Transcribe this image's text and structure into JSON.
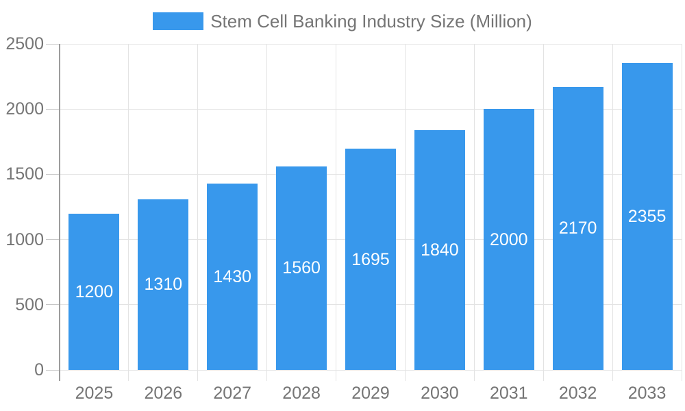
{
  "chart_data": {
    "type": "bar",
    "legend_label": "Stem Cell Banking Industry Size (Million)",
    "legend_position": "top-center",
    "categories": [
      "2025",
      "2026",
      "2027",
      "2028",
      "2029",
      "2030",
      "2031",
      "2032",
      "2033"
    ],
    "values": [
      1200,
      1310,
      1430,
      1560,
      1695,
      1840,
      2000,
      2170,
      2355
    ],
    "y_ticks": [
      0,
      500,
      1000,
      1500,
      2000,
      2500
    ],
    "ylim": [
      0,
      2500
    ],
    "xlabel": "",
    "ylabel": "",
    "grid": true,
    "colors": {
      "bar": "#3898EC",
      "bar_value_text": "#FFFFFF",
      "axis_text": "#757575",
      "axis_line": "#9C9C9C",
      "tick_line": "#C6C6C6",
      "grid_line": "#E3E3E3"
    }
  }
}
